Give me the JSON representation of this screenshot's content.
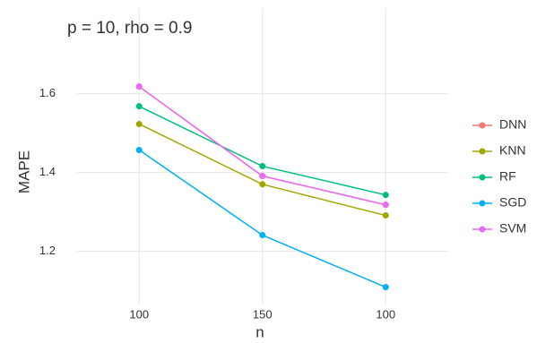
{
  "chart_data": {
    "type": "line",
    "title": "p = 10, rho = 0.9",
    "x_label": "n",
    "y_label": "MAPE",
    "categories": [
      "100",
      "150",
      "100"
    ],
    "series": [
      {
        "name": "DNN",
        "color": "#F8766D",
        "values": [
          1.618,
          1.391,
          1.318
        ]
      },
      {
        "name": "KNN",
        "color": "#A3A500",
        "values": [
          1.523,
          1.37,
          1.291
        ]
      },
      {
        "name": "RF",
        "color": "#00BF7D",
        "values": [
          1.568,
          1.416,
          1.343
        ]
      },
      {
        "name": "SGD",
        "color": "#00B0F6",
        "values": [
          1.457,
          1.241,
          1.109
        ]
      },
      {
        "name": "SVM",
        "color": "#E76BF3",
        "values": [
          1.618,
          1.391,
          1.318
        ]
      }
    ],
    "ylim": [
      1.065,
      1.815
    ],
    "yticks": [
      1.2,
      1.4,
      1.6
    ],
    "grid": true
  }
}
